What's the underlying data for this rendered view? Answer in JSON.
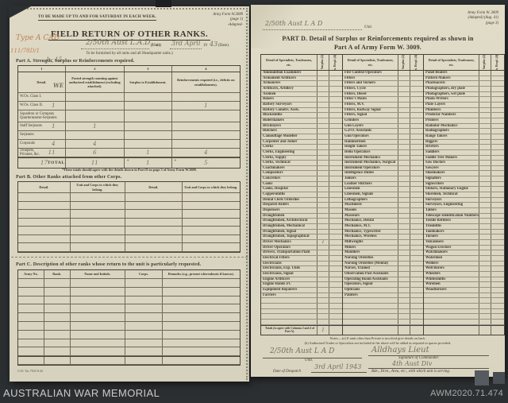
{
  "footer": {
    "left": "AUSTRALIAN WAR MEMORIAL",
    "right": "AWM2020.71.474"
  },
  "left_page": {
    "top_note": "TO BE MADE UP TO AND FOR SATURDAY IN EACH WEEK.",
    "form_no": "Army Form W.3089",
    "form_page": "(page 1)",
    "form_adapted": "-Adapted-",
    "title": "FIELD RETURN OF OTHER RANKS.",
    "hw_type": "Type A CAD",
    "hw_ref": "111/78D/1",
    "hw_ref2": "1 - 15",
    "hw_unit": "2/50th Aust L.A.D",
    "unit_label": "(Unit)",
    "hw_date": "3rd April",
    "date_prefix": "19",
    "hw_year": "43",
    "date_suffix": "(Date).",
    "furnish_note": "To be furnished by all units and all Headquarter units.)",
    "part_a": {
      "heading": "Part A.  Strength, Surplus or Reinforcements required.",
      "col_numbers": [
        "1",
        "2",
        "3",
        "4"
      ],
      "col_headers": [
        "Detail.",
        "Posted strength counting against authorized establishment (excluding attached).",
        "Surplus to Establishment.",
        "Reinforcements required (i.e., deficits on establishments)."
      ],
      "hw_we": "WE",
      "rows": [
        {
          "label": "W.Os. Class I.",
          "hw": [
            "",
            "",
            "",
            ""
          ]
        },
        {
          "label": "W.Os. Class II.",
          "hw": [
            "1",
            "",
            "",
            "1"
          ]
        },
        {
          "label": "Squadron or Company Quartermaster-Serjeants",
          "hw": [
            "",
            "",
            "",
            ""
          ]
        },
        {
          "label": "Staff Serjeants",
          "hw": [
            "1",
            "1",
            "",
            ""
          ]
        },
        {
          "label": "Serjeants",
          "hw": [
            "",
            "",
            "",
            ""
          ]
        },
        {
          "label": "Corporals",
          "hw": [
            "4",
            "4",
            "",
            ""
          ]
        },
        {
          "label": "Troopers, Privates, &c.",
          "hw": [
            "11",
            "6",
            "1",
            "4"
          ]
        }
      ],
      "totals_label": "TOTALS",
      "totals_hw": [
        "17",
        "11",
        "1",
        "5"
      ],
      "totals_note_mark": "*",
      "footnote": "*These totals should agree with the details shown in Part D on page 3 of Army Form W.3009."
    },
    "part_b": {
      "heading": "Part B.  Other Ranks attached from other Corps.",
      "col_headers": [
        "Detail.",
        "Unit and Corps to which they belong.",
        "Detail.",
        "Unit and Corps to which they belong."
      ]
    },
    "part_c": {
      "heading": "Part C.  Description of other ranks whose return to the unit is particularly requested.",
      "col_headers": [
        "Army No.",
        "Rank.",
        "Name and Initials.",
        "Corps.",
        "Remarks (e.g., present whereabouts if known)."
      ]
    },
    "imprint": "G.W. Tas 7631/6-42"
  },
  "right_page": {
    "form_no": "Army Form W. 3009",
    "form_adapted": "(Adapted) (Aug. 41)",
    "form_page": "(page 3)",
    "hw_unit_top": "2/50th Aust L A D",
    "unit_label_top": "Unit.",
    "title_1": "PART D.  Detail of Surplus or Reinforcements required as shown in",
    "title_2": "Part A of Army Form W. 3009.",
    "part_d": {
      "header_detail": "Detail of Specialists, Tradesmen, etc.",
      "header_surplus": "Surplus (2)",
      "header_reinf": "Reinfts. Reqd. (4)",
      "columns": [
        [
          "Ammunition Examiners",
          "Armament Artificers",
          "Armourers",
          "Artificers, Artillery",
          "Axemen",
          "Bakers",
          "Battery Surveyors",
          "Battery Comdrs. Assts.",
          "Blacksmiths",
          "Boilermakers",
          "Bricklayers",
          "Butchers",
          "Camouflage Modeller",
          "Carpenter and Joiner",
          "Clerks",
          "Clerks, Engineering",
          "Clerks, Supply",
          "Clerks, Technical",
          "Coachmakers",
          "Compositors",
          "Concretors",
          "Cooks",
          "Cooks, Hospital",
          "Coppersmiths",
          "Dental Clerk Orderlies",
          "Despatch Riders",
          "Dispensers",
          "Draughtsmen",
          "Draughtsmen, Architectural",
          "Draughtsmen, Mechanical",
          "Draughtsmen, Signal",
          "Draughtsmen, Topographical",
          "Driver Mechanics",
          "Driver Operators",
          "Drivers, Transportation Plant",
          "Electrical Fitters",
          "Electricians",
          "Electricians, Exp. Units",
          "Electricians, Signal",
          "Engine Artificers",
          "Engine Hands I/C",
          "Equipment Repairers",
          "Farriers"
        ],
        [
          "Fire Control Operators",
          "Fitters",
          "Fitters and Turners",
          "Fitters, Cycle",
          "Fitters, Diesel",
          "Fitter's Mates",
          "Fitters, M.V.",
          "Fitters, Railway Signal",
          "Fitters, Signal",
          "Grinders",
          "Gun Layers",
          "G.P.O. Assistants",
          "Gun Operators",
          "Hammermen",
          "Height Takers",
          "Helio Operators",
          "Instrument Mechanics",
          "Instrument Mechanics, Surgical",
          "Instrument Operators",
          "Intelligence Duties",
          "Joiners",
          "Leather Stitchers",
          "Linesmen",
          "Linesmen, Signals",
          "Lithographers",
          "Machinists",
          "Masons",
          "Masseurs",
          "Mechanics, Dental",
          "Mechanics, M.T.",
          "Mechanics, Typewriter",
          "Mechanics, Wireless",
          "Millwrights",
          "Miners",
          "Moulders",
          "Nursing Orderlies",
          "Nursing Orderlies (Mental)",
          "Nurses, Trained",
          "Observation Post Assistants",
          "Operating Room Assistants",
          "Operators, Signal",
          "Opticians",
          "Painters"
        ],
        [
          "Panel Beaters",
          "Pattern Makers",
          "Pharmacists",
          "Photographers, dry plate",
          "Photographers, wet plate",
          "Photo-Writers",
          "Plate Layers",
          "Plumbers",
          "Predictor Numbers",
          "Printers",
          "Radiator Mechanics",
          "Radiographers",
          "Range Takers",
          "Riggers",
          "Riveters",
          "Saddlers",
          "Saddle Tree Makers",
          "Saw Doctors",
          "Sawyers",
          "Shoemakers",
          "Signallers",
          "Signwriters",
          "Stokers, Stationary Engine",
          "Storemen, Technical",
          "Surveyors",
          "Surveyors, Engineering",
          "Tailors",
          "Telescope Identification Numbers",
          "Textile Refitters",
          "Tinsmiths",
          "Toolmakers",
          "Turners",
          "Vulcanisers",
          "Wagon Erectors",
          "Watchmakers",
          "Watermen",
          "Welders",
          "Well Borers",
          "Wheelers",
          "Whitesmiths",
          "Wiremen",
          "Woodturners"
        ]
      ],
      "marks": {
        "Driver Mechanics": "1"
      },
      "totals_label": "Totals (to agree with Columns 2 and 4 of Part A).",
      "totals_surplus": "1"
    },
    "note_a": "Notes.—(a) If rank other than Private is involved give details on back.",
    "note_b": "(b) Authorized Trades or Specialists not included in list above will be added as required in spaces provided.",
    "sig": {
      "hw_unit": "2/50th Aust L A D",
      "unit_label": "Unit.",
      "date_label": "Date of Despatch",
      "hw_date": "3rd April 1943",
      "hw_signature": "Alldhays  Lieut",
      "sig_label": "Signature of Commander.",
      "hw_formation": "4th Aust Div",
      "formation_label": "Bde., Divn., Area, etc., with which unit is serving."
    }
  }
}
